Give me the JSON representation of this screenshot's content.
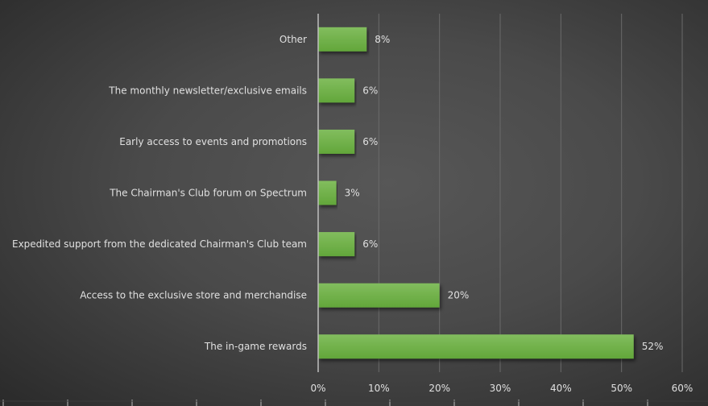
{
  "chart_data": {
    "type": "bar",
    "orientation": "horizontal",
    "title": "",
    "xlabel": "",
    "ylabel": "",
    "categories": [
      "Other",
      "The monthly newsletter/exclusive emails",
      "Early access to events and promotions",
      "The Chairman's Club forum on Spectrum",
      "Expedited support from the dedicated Chairman's Club team",
      "Access to the exclusive store and merchandise",
      "The in-game rewards"
    ],
    "values": [
      8,
      6,
      6,
      3,
      6,
      20,
      52
    ],
    "data_labels": [
      "8%",
      "6%",
      "6%",
      "3%",
      "6%",
      "20%",
      "52%"
    ],
    "xlim": [
      0,
      60
    ],
    "x_ticks": [
      "0%",
      "10%",
      "20%",
      "30%",
      "40%",
      "50%",
      "60%"
    ],
    "grid": true,
    "legend": "none",
    "bar_color": "#70ad47"
  }
}
